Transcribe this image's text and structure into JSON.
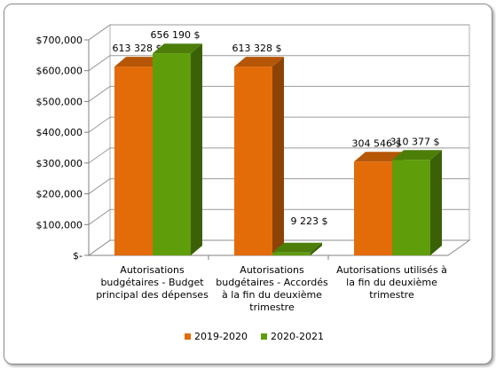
{
  "chart_data": {
    "type": "bar",
    "categories": [
      [
        "Autorisations",
        "budgétaires - Budget",
        "principal des dépenses"
      ],
      [
        "Autorisations",
        "budgétaires - Accordés",
        "à la fin du deuxième",
        "trimestre"
      ],
      [
        "Autorisations utilisés à",
        "la fin du deuxième",
        "trimestre"
      ]
    ],
    "series": [
      {
        "name": "2019-2020",
        "values": [
          613328,
          613328,
          304546
        ],
        "labels": [
          "613 328 $",
          "613 328 $",
          "304 546 $"
        ],
        "color": "#e36c09"
      },
      {
        "name": "2020-2021",
        "values": [
          656190,
          9223,
          310377
        ],
        "labels": [
          "656 190 $",
          "9 223 $",
          "310 377 $"
        ],
        "color": "#5f9d0a"
      }
    ],
    "ylim": [
      0,
      700000
    ],
    "yticks": [
      0,
      100000,
      200000,
      300000,
      400000,
      500000,
      600000,
      700000
    ],
    "ytick_labels": [
      "$-",
      "$100,000",
      "$200,000",
      "$300,000",
      "$400,000",
      "$500,000",
      "$600,000",
      "$700,000"
    ],
    "grid": true,
    "legend_position": "bottom"
  }
}
